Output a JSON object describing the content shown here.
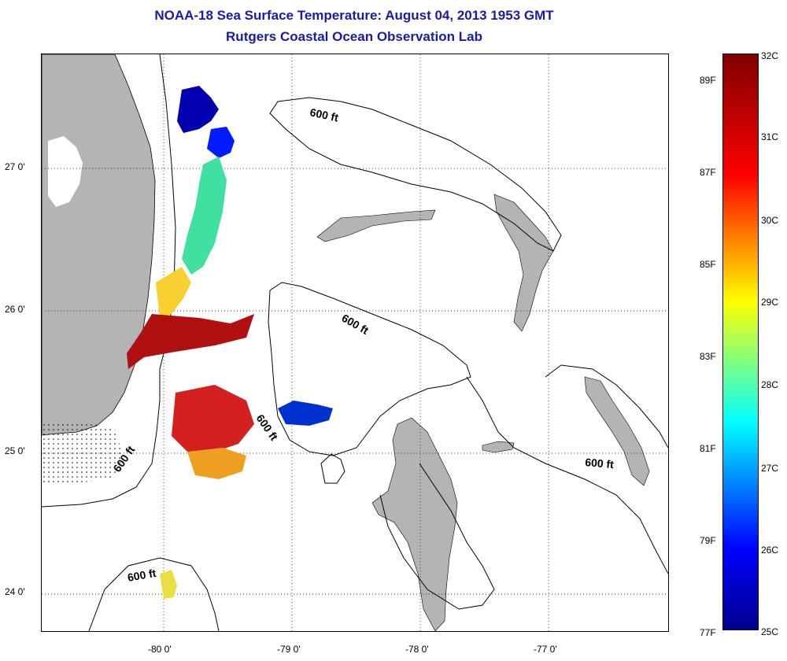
{
  "title": "NOAA-18 Sea Surface Temperature:  August 04, 2013 1953 GMT",
  "subtitle": "Rutgers Coastal Ocean Observation Lab",
  "longitude_labels": [
    "-80 0'",
    "-79 0'",
    "-78 0'",
    "-77 0'"
  ],
  "latitude_labels": [
    "27 0'",
    "26 0'",
    "25 0'",
    "24 0'"
  ],
  "contour_labels": [
    "600 ft",
    "600 ft",
    "600 ft",
    "600 ft",
    "600 ft",
    "600 ft"
  ],
  "colorbar": {
    "celsius_labels": [
      "32C",
      "31C",
      "30C",
      "29C",
      "28C",
      "27C",
      "26C",
      "25C"
    ],
    "fahrenheit_labels": [
      "89F",
      "87F",
      "85F",
      "83F",
      "81F",
      "79F",
      "77F"
    ],
    "colors": [
      "#00008f",
      "#0000ff",
      "#00ffff",
      "#ffff00",
      "#ff0000",
      "#800000"
    ]
  },
  "land_color": "#b4b4b4"
}
